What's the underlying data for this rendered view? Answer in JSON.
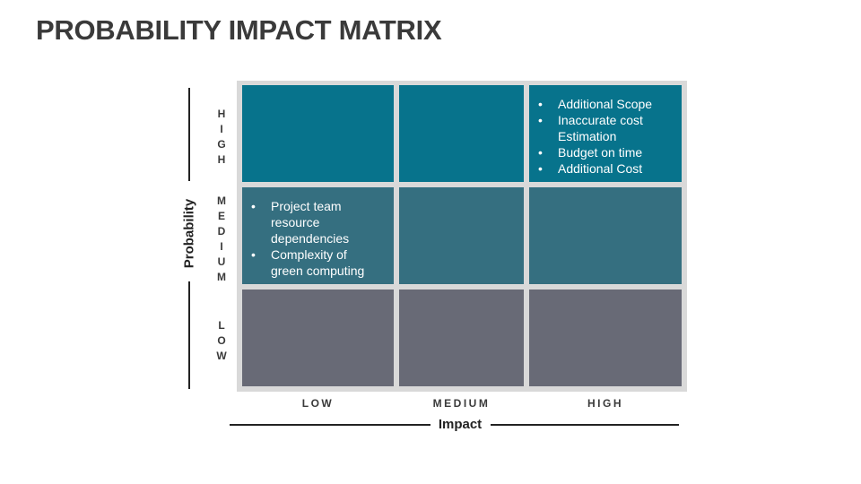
{
  "title": "PROBABILITY IMPACT MATRIX",
  "axes": {
    "y_title": "Probability",
    "x_title": "Impact",
    "y_levels": [
      "HIGH",
      "MEDIUM",
      "LOW"
    ],
    "x_levels": [
      "LOW",
      "MEDIUM",
      "HIGH"
    ]
  },
  "colors": {
    "high_row": "#07738c",
    "medium_row": "#356f80",
    "low_row": "#686a76",
    "grid": "#d9d9d9"
  },
  "cells": {
    "high_high": [
      "Additional Scope",
      "Inaccurate cost Estimation",
      "Budget on time",
      "Additional Cost"
    ],
    "medium_low": [
      "Project team resource dependencies",
      "Complexity of green computing"
    ]
  }
}
